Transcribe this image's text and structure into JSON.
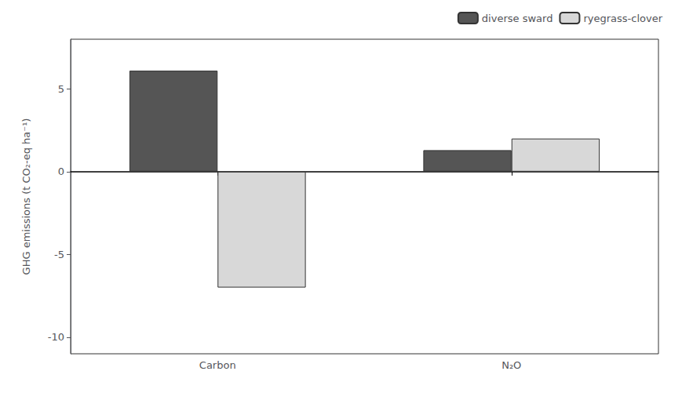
{
  "chart_data": {
    "type": "bar",
    "categories": [
      "Carbon",
      "N₂O"
    ],
    "series": [
      {
        "name": "diverse sward",
        "color": "#555555",
        "values": [
          6.1,
          1.3
        ]
      },
      {
        "name": "ryegrass-clover",
        "color": "#d8d8d8",
        "values": [
          -7.0,
          2.0
        ]
      }
    ],
    "ylabel": "GHG emissions (t CO₂-eq ha⁻¹)",
    "ylim": [
      -11,
      8
    ],
    "yticks": [
      -10,
      -5,
      0,
      5
    ],
    "legend": "upper right",
    "grid": false
  }
}
